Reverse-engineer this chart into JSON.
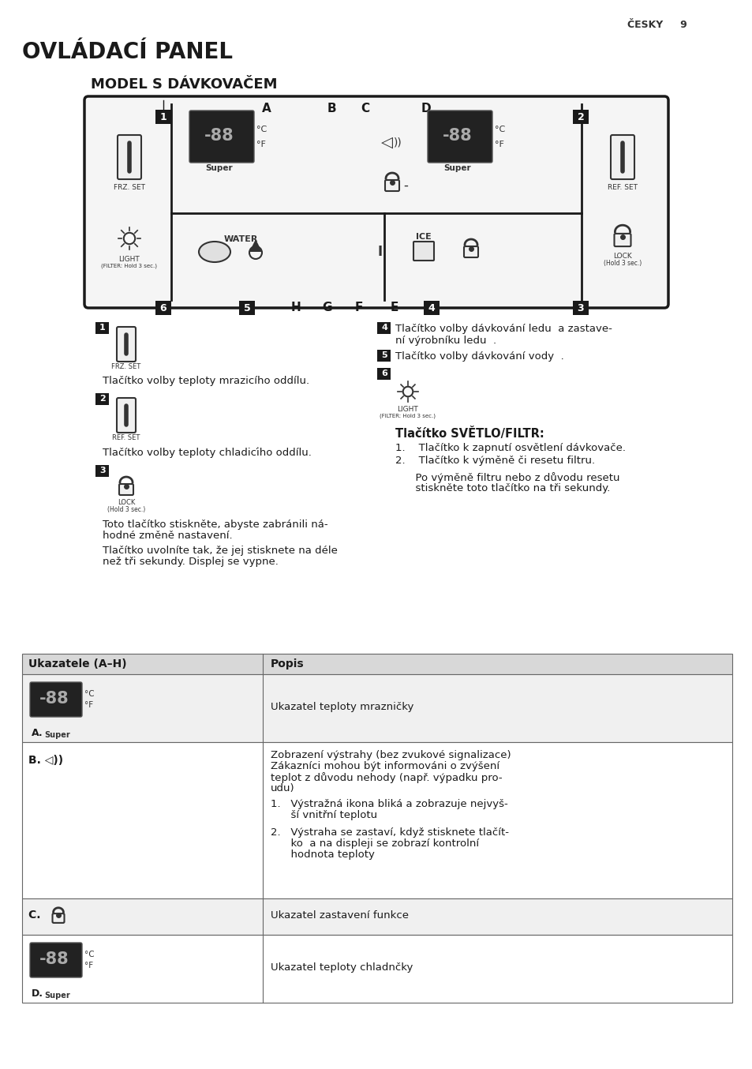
{
  "page_header": "ČESKY     9",
  "title": "OVLÁDACÍ PANEL",
  "subtitle": "MODEL S DÁVKOVAČEM",
  "bg_color": "#ffffff",
  "top_labels": [
    "1",
    "A",
    "B",
    "C",
    "D",
    "2"
  ],
  "bottom_labels": [
    "6",
    "5",
    "H",
    "G",
    "F",
    "E",
    "4",
    "3"
  ],
  "table_header": [
    "Ukazatele (A–H)",
    "Popis"
  ],
  "row_a_right": "Ukazatel teploty mrazničky",
  "row_b_left": "B. ◁))",
  "row_b_right_lines": [
    "Zobrazení výstrahy (bez zvukové signalizace)",
    "Zákazníci mohou být informováni o zvýšení",
    "teplot z důvodu nehody (např. výpadku pro-",
    "udu)"
  ],
  "row_b_items": [
    "Výstražná ikona bliká a zobrazuje nejvyš-",
    "ší vnitřní teplotu",
    "Výstraha se zastaví, když stisknete tlačít-",
    "ko  a na displeji se zobrazí kontrolní",
    "hodnota teploty"
  ],
  "row_c_right": "Ukazatel zastavení funkce",
  "row_d_right": "Ukazatel teploty chladnčky",
  "item1_text": "Tlačítko volby teploty mrazicího oddílu.",
  "item2_text": "Tlačítko volby teploty chladicího oddílu.",
  "item3_text1": "Toto tlačítko stiskněte, abyste zabránili ná-",
  "item3_text2": "hodné změně nastavení.",
  "item3_text3": "Tlačítko uvolníte tak, že jej stisknete na déle",
  "item3_text4": "než tři sekundy. Displej se vypne.",
  "item4_text1": "Tlačítko volby dávkování ledu  a zastave-",
  "item4_text2": "ní výrobníku ledu  .",
  "item5_text": "Tlačítko volby dávkování vody  .",
  "item6_header": "Tlačítko SVĚTLO/FILTR:",
  "item6_item1": "Tlačítko k zapnutí osvětlení dávkovače.",
  "item6_item2": "Tlačítko k výměně či resetu filtru.",
  "item6_text3": "Po výměně filtru nebo z důvodu resetu",
  "item6_text4": "stiskněte toto tlačítko na tři sekundy."
}
